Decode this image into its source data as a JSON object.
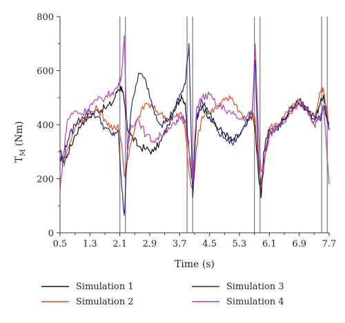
{
  "chart_data": {
    "type": "line",
    "xlabel": "Time (s)",
    "ylabel": {
      "base": "T",
      "subscript": "M",
      "rest": " (Nm)"
    },
    "xlim": [
      0.5,
      7.7
    ],
    "ylim": [
      0,
      800
    ],
    "xticks": [
      0.5,
      1.3,
      2.1,
      2.9,
      3.7,
      4.5,
      5.3,
      6.1,
      6.9,
      7.7
    ],
    "xtick_labels": [
      "0.5",
      "1.3",
      "2.1",
      "2.9",
      "3.7",
      "4.5",
      "5.3",
      "6.1",
      "6.9",
      "7.7"
    ],
    "yticks": [
      0,
      200,
      400,
      600,
      800
    ],
    "ytick_labels": [
      "0",
      "200",
      "400",
      "600",
      "800"
    ],
    "vertical_lines": [
      2.1,
      2.25,
      3.9,
      4.05,
      5.7,
      5.85,
      7.5,
      7.65
    ],
    "grid": false,
    "legend_position": "bottom",
    "series": [
      {
        "name": "Simulation 1",
        "color": "#111111",
        "x": [
          0.5,
          0.6,
          0.7,
          0.9,
          1.1,
          1.3,
          1.5,
          1.7,
          1.9,
          2.05,
          2.15,
          2.22,
          2.3,
          2.4,
          2.6,
          2.8,
          3.0,
          3.2,
          3.4,
          3.6,
          3.75,
          3.85,
          3.95,
          4.05,
          4.15,
          4.3,
          4.5,
          4.7,
          4.9,
          5.1,
          5.3,
          5.5,
          5.65,
          5.72,
          5.8,
          5.88,
          5.95,
          6.1,
          6.3,
          6.5,
          6.7,
          6.9,
          7.1,
          7.3,
          7.45,
          7.55,
          7.7
        ],
        "y": [
          300,
          260,
          290,
          360,
          410,
          430,
          455,
          460,
          480,
          530,
          540,
          480,
          390,
          360,
          320,
          310,
          300,
          340,
          400,
          460,
          510,
          480,
          300,
          180,
          420,
          470,
          430,
          390,
          370,
          340,
          360,
          400,
          440,
          380,
          230,
          130,
          300,
          380,
          380,
          420,
          470,
          480,
          460,
          420,
          470,
          510,
          380
        ]
      },
      {
        "name": "Simulation 2",
        "color": "#e0501a",
        "x": [
          0.5,
          0.6,
          0.7,
          0.9,
          1.1,
          1.3,
          1.5,
          1.7,
          1.9,
          2.05,
          2.15,
          2.22,
          2.3,
          2.4,
          2.6,
          2.8,
          3.0,
          3.2,
          3.4,
          3.6,
          3.75,
          3.85,
          3.95,
          4.05,
          4.15,
          4.3,
          4.5,
          4.7,
          4.9,
          5.1,
          5.3,
          5.5,
          5.65,
          5.72,
          5.8,
          5.88,
          5.95,
          6.1,
          6.3,
          6.5,
          6.7,
          6.9,
          7.1,
          7.3,
          7.45,
          7.55,
          7.7
        ],
        "y": [
          280,
          250,
          310,
          390,
          420,
          440,
          460,
          420,
          380,
          400,
          330,
          210,
          270,
          330,
          430,
          480,
          460,
          440,
          420,
          430,
          440,
          380,
          220,
          150,
          320,
          430,
          450,
          460,
          490,
          500,
          450,
          420,
          430,
          420,
          260,
          180,
          250,
          390,
          400,
          430,
          460,
          490,
          450,
          410,
          520,
          530,
          400
        ]
      },
      {
        "name": "Simulation 3",
        "color": "#28238c",
        "x": [
          0.5,
          0.6,
          0.7,
          0.9,
          1.1,
          1.3,
          1.5,
          1.7,
          1.9,
          2.05,
          2.15,
          2.22,
          2.3,
          2.4,
          2.6,
          2.8,
          3.0,
          3.2,
          3.4,
          3.6,
          3.75,
          3.85,
          3.95,
          4.05,
          4.15,
          4.3,
          4.5,
          4.7,
          4.9,
          5.1,
          5.3,
          5.5,
          5.65,
          5.72,
          5.8,
          5.88,
          5.95,
          6.1,
          6.3,
          6.5,
          6.7,
          6.9,
          7.1,
          7.3,
          7.45,
          7.55,
          7.7
        ],
        "y": [
          270,
          280,
          340,
          400,
          430,
          450,
          430,
          390,
          360,
          380,
          170,
          65,
          300,
          450,
          590,
          560,
          460,
          400,
          420,
          470,
          520,
          550,
          700,
          130,
          420,
          490,
          440,
          380,
          350,
          330,
          360,
          420,
          460,
          640,
          300,
          140,
          240,
          380,
          390,
          420,
          450,
          490,
          460,
          430,
          420,
          470,
          380
        ]
      },
      {
        "name": "Simulation 4",
        "color": "#b13fb8",
        "x": [
          0.5,
          0.6,
          0.7,
          0.9,
          1.1,
          1.3,
          1.5,
          1.7,
          1.9,
          2.05,
          2.15,
          2.22,
          2.3,
          2.4,
          2.6,
          2.8,
          3.0,
          3.2,
          3.4,
          3.6,
          3.75,
          3.85,
          3.95,
          4.05,
          4.15,
          4.3,
          4.5,
          4.7,
          4.9,
          5.1,
          5.3,
          5.5,
          5.65,
          5.72,
          5.8,
          5.88,
          5.95,
          6.1,
          6.3,
          6.5,
          6.7,
          6.9,
          7.1,
          7.3,
          7.45,
          7.55,
          7.7
        ],
        "y": [
          160,
          300,
          420,
          450,
          440,
          470,
          490,
          500,
          520,
          540,
          590,
          730,
          300,
          400,
          420,
          360,
          340,
          360,
          390,
          400,
          430,
          420,
          300,
          190,
          460,
          500,
          510,
          470,
          460,
          440,
          420,
          430,
          450,
          700,
          400,
          230,
          250,
          360,
          380,
          410,
          440,
          480,
          460,
          400,
          420,
          470,
          180
        ]
      }
    ]
  }
}
